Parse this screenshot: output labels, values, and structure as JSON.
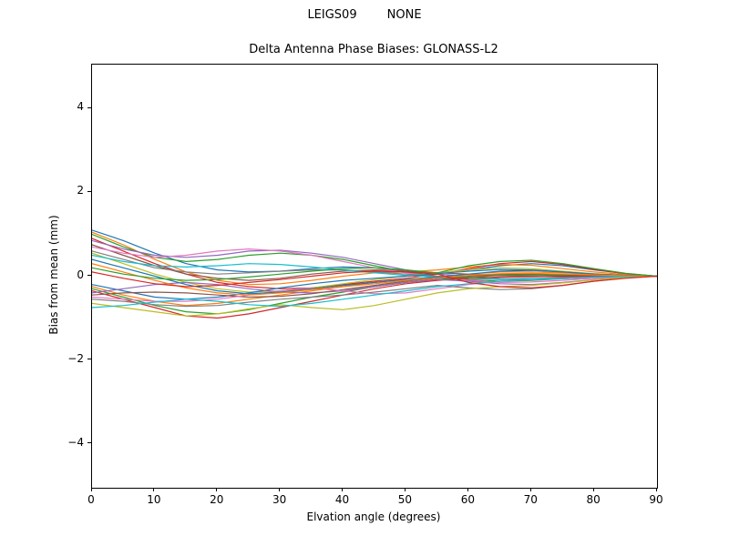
{
  "chart_data": {
    "type": "line",
    "suptitle": "LEIGS09        NONE",
    "title": "Delta Antenna Phase Biases: GLONASS-L2",
    "xlabel": "Elvation angle (degrees)",
    "ylabel": "Bias from mean (mm)",
    "xlim": [
      0,
      90
    ],
    "ylim": [
      -5.05,
      5.05
    ],
    "xticks": [
      0,
      10,
      20,
      30,
      40,
      50,
      60,
      70,
      80,
      90
    ],
    "xtick_labels": [
      "0",
      "10",
      "20",
      "30",
      "40",
      "50",
      "60",
      "70",
      "80",
      "90"
    ],
    "yticks": [
      -4,
      -2,
      0,
      2,
      4
    ],
    "ytick_labels": [
      "−4",
      "−2",
      "0",
      "2",
      "4"
    ],
    "grid": false,
    "legend": "none",
    "x": [
      0,
      5,
      10,
      15,
      20,
      25,
      30,
      35,
      40,
      45,
      50,
      55,
      60,
      65,
      70,
      75,
      80,
      85,
      90
    ],
    "series": [
      {
        "color": "#1f77b4",
        "values": [
          1.1,
          0.85,
          0.55,
          0.3,
          0.15,
          0.1,
          0.12,
          0.18,
          0.22,
          0.2,
          0.12,
          0.08,
          0.15,
          0.25,
          0.3,
          0.25,
          0.15,
          0.06,
          0.0
        ]
      },
      {
        "color": "#ff7f0e",
        "values": [
          1.05,
          0.75,
          0.4,
          0.1,
          -0.1,
          -0.2,
          -0.18,
          -0.1,
          0.0,
          0.08,
          0.1,
          0.15,
          0.22,
          0.28,
          0.26,
          0.18,
          0.1,
          0.04,
          0.0
        ]
      },
      {
        "color": "#2ca02c",
        "values": [
          1.0,
          0.7,
          0.45,
          0.35,
          0.4,
          0.5,
          0.55,
          0.5,
          0.4,
          0.25,
          0.1,
          0.0,
          -0.08,
          -0.12,
          -0.1,
          -0.06,
          -0.03,
          -0.01,
          0.0
        ]
      },
      {
        "color": "#d62728",
        "values": [
          0.9,
          0.6,
          0.3,
          0.05,
          -0.15,
          -0.25,
          -0.3,
          -0.28,
          -0.2,
          -0.12,
          -0.05,
          0.05,
          0.18,
          0.3,
          0.35,
          0.28,
          0.16,
          0.06,
          0.0
        ]
      },
      {
        "color": "#9467bd",
        "values": [
          0.85,
          0.65,
          0.5,
          0.45,
          0.5,
          0.6,
          0.62,
          0.55,
          0.45,
          0.3,
          0.15,
          0.05,
          0.0,
          -0.05,
          -0.08,
          -0.06,
          -0.03,
          -0.01,
          0.0
        ]
      },
      {
        "color": "#8c564b",
        "values": [
          0.75,
          0.5,
          0.25,
          0.05,
          -0.05,
          -0.1,
          -0.05,
          0.05,
          0.12,
          0.15,
          0.12,
          0.08,
          0.05,
          0.02,
          0.0,
          -0.02,
          -0.02,
          -0.01,
          0.0
        ]
      },
      {
        "color": "#e377c2",
        "values": [
          0.7,
          0.55,
          0.45,
          0.5,
          0.6,
          0.65,
          0.6,
          0.5,
          0.35,
          0.2,
          0.08,
          -0.02,
          -0.1,
          -0.15,
          -0.14,
          -0.1,
          -0.05,
          -0.02,
          0.0
        ]
      },
      {
        "color": "#7f7f7f",
        "values": [
          0.6,
          0.4,
          0.2,
          0.1,
          0.05,
          0.08,
          0.12,
          0.15,
          0.15,
          0.1,
          0.05,
          0.0,
          -0.05,
          -0.08,
          -0.08,
          -0.06,
          -0.03,
          -0.01,
          0.0
        ]
      },
      {
        "color": "#bcbd22",
        "values": [
          0.55,
          0.3,
          0.05,
          -0.15,
          -0.3,
          -0.38,
          -0.35,
          -0.28,
          -0.18,
          -0.08,
          0.0,
          0.08,
          0.15,
          0.2,
          0.18,
          0.12,
          0.06,
          0.02,
          0.0
        ]
      },
      {
        "color": "#17becf",
        "values": [
          0.5,
          0.35,
          0.25,
          0.22,
          0.25,
          0.3,
          0.28,
          0.22,
          0.15,
          0.08,
          0.02,
          -0.02,
          -0.05,
          -0.06,
          -0.05,
          -0.04,
          -0.02,
          -0.01,
          0.0
        ]
      },
      {
        "color": "#1f77b4",
        "values": [
          -0.2,
          -0.35,
          -0.5,
          -0.55,
          -0.5,
          -0.4,
          -0.28,
          -0.18,
          -0.1,
          -0.05,
          0.0,
          0.06,
          0.12,
          0.16,
          0.15,
          0.1,
          0.05,
          0.02,
          0.0
        ]
      },
      {
        "color": "#ff7f0e",
        "values": [
          -0.25,
          -0.45,
          -0.6,
          -0.7,
          -0.65,
          -0.55,
          -0.45,
          -0.35,
          -0.25,
          -0.15,
          -0.08,
          -0.02,
          0.05,
          0.1,
          0.1,
          0.08,
          0.04,
          0.01,
          0.0
        ]
      },
      {
        "color": "#2ca02c",
        "values": [
          -0.3,
          -0.5,
          -0.7,
          -0.85,
          -0.9,
          -0.8,
          -0.65,
          -0.5,
          -0.38,
          -0.25,
          -0.15,
          -0.08,
          -0.02,
          0.02,
          0.03,
          0.02,
          0.01,
          0.0,
          0.0
        ]
      },
      {
        "color": "#d62728",
        "values": [
          -0.35,
          -0.55,
          -0.75,
          -0.95,
          -1.0,
          -0.9,
          -0.75,
          -0.6,
          -0.45,
          -0.3,
          -0.18,
          -0.1,
          -0.05,
          -0.02,
          -0.01,
          0.0,
          0.0,
          0.0,
          0.0
        ]
      },
      {
        "color": "#9467bd",
        "values": [
          -0.4,
          -0.3,
          -0.2,
          -0.15,
          -0.2,
          -0.3,
          -0.38,
          -0.4,
          -0.35,
          -0.25,
          -0.15,
          -0.08,
          -0.12,
          -0.18,
          -0.2,
          -0.15,
          -0.08,
          -0.03,
          0.0
        ]
      },
      {
        "color": "#8c564b",
        "values": [
          -0.45,
          -0.4,
          -0.38,
          -0.4,
          -0.45,
          -0.5,
          -0.48,
          -0.42,
          -0.32,
          -0.22,
          -0.12,
          -0.05,
          0.0,
          0.04,
          0.05,
          0.04,
          0.02,
          0.01,
          0.0
        ]
      },
      {
        "color": "#e377c2",
        "values": [
          -0.5,
          -0.55,
          -0.6,
          -0.6,
          -0.55,
          -0.45,
          -0.35,
          -0.28,
          -0.35,
          -0.42,
          -0.4,
          -0.3,
          -0.2,
          -0.12,
          -0.08,
          -0.05,
          -0.03,
          -0.01,
          0.0
        ]
      },
      {
        "color": "#7f7f7f",
        "values": [
          -0.55,
          -0.6,
          -0.68,
          -0.72,
          -0.7,
          -0.62,
          -0.55,
          -0.5,
          -0.45,
          -0.38,
          -0.3,
          -0.22,
          -0.28,
          -0.32,
          -0.3,
          -0.22,
          -0.12,
          -0.04,
          0.0
        ]
      },
      {
        "color": "#bcbd22",
        "values": [
          -0.65,
          -0.75,
          -0.85,
          -0.95,
          -0.9,
          -0.78,
          -0.68,
          -0.75,
          -0.8,
          -0.7,
          -0.55,
          -0.4,
          -0.3,
          -0.25,
          -0.22,
          -0.16,
          -0.09,
          -0.03,
          0.0
        ]
      },
      {
        "color": "#17becf",
        "values": [
          -0.75,
          -0.7,
          -0.62,
          -0.55,
          -0.6,
          -0.68,
          -0.72,
          -0.65,
          -0.55,
          -0.45,
          -0.35,
          -0.25,
          -0.18,
          -0.12,
          -0.08,
          -0.05,
          -0.02,
          -0.01,
          0.0
        ]
      },
      {
        "color": "#1f77b4",
        "values": [
          0.4,
          0.2,
          0.0,
          -0.2,
          -0.35,
          -0.42,
          -0.38,
          -0.3,
          -0.22,
          -0.15,
          -0.08,
          -0.02,
          0.05,
          0.12,
          0.14,
          0.1,
          0.05,
          0.02,
          0.0
        ]
      },
      {
        "color": "#ff7f0e",
        "values": [
          0.3,
          0.1,
          -0.1,
          -0.28,
          -0.4,
          -0.45,
          -0.4,
          -0.32,
          -0.25,
          -0.18,
          -0.1,
          -0.04,
          0.02,
          0.06,
          0.07,
          0.05,
          0.03,
          0.01,
          0.0
        ]
      },
      {
        "color": "#2ca02c",
        "values": [
          0.2,
          0.05,
          -0.05,
          -0.1,
          -0.08,
          -0.02,
          0.05,
          0.12,
          0.18,
          0.2,
          0.15,
          0.08,
          0.25,
          0.35,
          0.38,
          0.3,
          0.18,
          0.07,
          0.0
        ]
      },
      {
        "color": "#d62728",
        "values": [
          0.1,
          -0.05,
          -0.18,
          -0.25,
          -0.22,
          -0.15,
          -0.08,
          0.0,
          0.08,
          0.12,
          0.1,
          0.05,
          -0.15,
          -0.25,
          -0.28,
          -0.22,
          -0.12,
          -0.05,
          0.0
        ]
      }
    ]
  }
}
